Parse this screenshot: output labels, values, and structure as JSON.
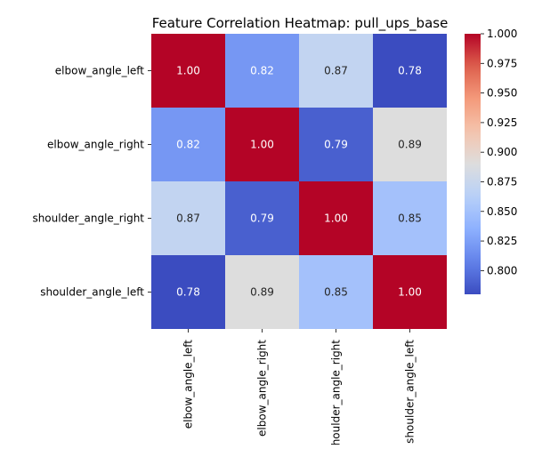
{
  "chart_data": {
    "type": "heatmap",
    "title": "Feature Correlation Heatmap: pull_ups_base",
    "row_labels": [
      "elbow_angle_left",
      "elbow_angle_right",
      "shoulder_angle_right",
      "shoulder_angle_left"
    ],
    "col_labels": [
      "elbow_angle_left",
      "elbow_angle_right",
      "shoulder_angle_right",
      "shoulder_angle_left"
    ],
    "values": [
      [
        1.0,
        0.82,
        0.87,
        0.78
      ],
      [
        0.82,
        1.0,
        0.79,
        0.89
      ],
      [
        0.87,
        0.79,
        1.0,
        0.85
      ],
      [
        0.78,
        0.89,
        0.85,
        1.0
      ]
    ],
    "value_format": "2 decimals",
    "colormap": "coolwarm",
    "colorbar": {
      "min": 0.78,
      "max": 1.0,
      "ticks": [
        "0.800",
        "0.825",
        "0.850",
        "0.875",
        "0.900",
        "0.925",
        "0.950",
        "0.975",
        "1.000"
      ]
    },
    "colors": {
      "low": "#3b4cc0",
      "mid": "#dddddd",
      "high": "#b40426"
    }
  }
}
